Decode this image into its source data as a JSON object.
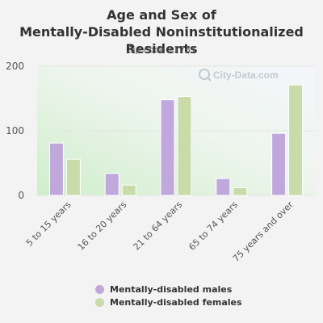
{
  "chart_data": {
    "type": "bar",
    "title": "Age and Sex of Mentally-Disabled Noninstitutionalized Residents",
    "subtitle": "Zip code 11731",
    "categories": [
      "5 to 15 years",
      "16 to 20 years",
      "21 to 64 years",
      "65 to 74 years",
      "75 years and over"
    ],
    "series": [
      {
        "name": "Mentally-disabled males",
        "color": "#c0a8dc",
        "values": [
          81,
          34,
          148,
          26,
          96
        ]
      },
      {
        "name": "Mentally-disabled females",
        "color": "#c8dba8",
        "values": [
          56,
          16,
          153,
          12,
          171
        ]
      }
    ],
    "yticks": [
      0,
      100,
      200
    ],
    "ylim": [
      0,
      200
    ],
    "xlabel": "",
    "ylabel": "",
    "grid": true,
    "legend_position": "bottom",
    "watermark": "City-Data.com"
  }
}
